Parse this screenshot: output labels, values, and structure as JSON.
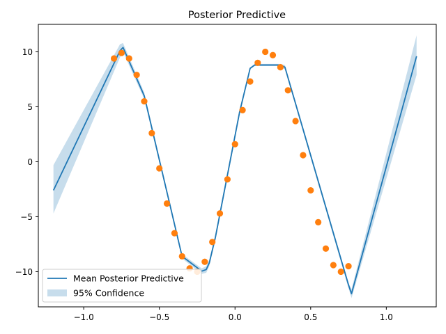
{
  "chart_data": {
    "type": "line",
    "title": "Posterior Predictive",
    "xlabel": "",
    "ylabel": "",
    "xlim": [
      -1.3,
      1.33
    ],
    "ylim": [
      -13.2,
      12.5
    ],
    "x_ticks": [
      {
        "value": -1.0,
        "label": "−1.0"
      },
      {
        "value": -0.5,
        "label": "−0.5"
      },
      {
        "value": 0.0,
        "label": "0.0"
      },
      {
        "value": 0.5,
        "label": "0.5"
      },
      {
        "value": 1.0,
        "label": "1.0"
      }
    ],
    "y_ticks": [
      {
        "value": 10,
        "label": "10"
      },
      {
        "value": 5,
        "label": "5"
      },
      {
        "value": 0,
        "label": "0"
      },
      {
        "value": -5,
        "label": "−5"
      },
      {
        "value": -10,
        "label": "−10"
      }
    ],
    "grid": false,
    "legend_position": "lower-left",
    "legend": [
      {
        "label": "Mean Posterior Predictive",
        "kind": "line",
        "color": "#1f77b4"
      },
      {
        "label": "95% Confidence",
        "kind": "band",
        "color": "#1f77b4"
      }
    ],
    "mean_x": [
      -1.2,
      -0.76,
      -0.74,
      -0.6,
      -0.35,
      -0.22,
      -0.19,
      -0.17,
      -0.13,
      0.03,
      0.1,
      0.13,
      0.3,
      0.33,
      0.75,
      0.77,
      1.2
    ],
    "mean_y": [
      -2.6,
      10.1,
      10.4,
      6.0,
      -8.6,
      -9.95,
      -9.8,
      -9.2,
      -6.9,
      4.5,
      8.5,
      8.8,
      8.8,
      8.6,
      -11.2,
      -12.0,
      9.6
    ],
    "band_upper": [
      -0.3,
      10.7,
      10.8,
      6.3,
      -8.4,
      -9.7,
      -9.5,
      -8.9,
      -6.6,
      4.8,
      8.6,
      8.9,
      8.9,
      8.8,
      -11.0,
      -11.6,
      11.5
    ],
    "band_lower": [
      -4.7,
      9.5,
      10.0,
      5.7,
      -8.8,
      -10.2,
      -10.1,
      -9.5,
      -7.2,
      4.2,
      8.4,
      8.7,
      8.7,
      8.4,
      -11.5,
      -12.4,
      7.9
    ],
    "points": [
      {
        "x": -0.8,
        "y": 9.4
      },
      {
        "x": -0.75,
        "y": 9.9
      },
      {
        "x": -0.7,
        "y": 9.4
      },
      {
        "x": -0.65,
        "y": 7.9
      },
      {
        "x": -0.6,
        "y": 5.5
      },
      {
        "x": -0.55,
        "y": 2.6
      },
      {
        "x": -0.5,
        "y": -0.6
      },
      {
        "x": -0.45,
        "y": -3.8
      },
      {
        "x": -0.4,
        "y": -6.5
      },
      {
        "x": -0.35,
        "y": -8.6
      },
      {
        "x": -0.3,
        "y": -9.7
      },
      {
        "x": -0.25,
        "y": -10.0
      },
      {
        "x": -0.2,
        "y": -9.1
      },
      {
        "x": -0.15,
        "y": -7.3
      },
      {
        "x": -0.1,
        "y": -4.7
      },
      {
        "x": -0.05,
        "y": -1.6
      },
      {
        "x": 0.0,
        "y": 1.6
      },
      {
        "x": 0.05,
        "y": 4.7
      },
      {
        "x": 0.1,
        "y": 7.3
      },
      {
        "x": 0.15,
        "y": 9.0
      },
      {
        "x": 0.2,
        "y": 10.0
      },
      {
        "x": 0.25,
        "y": 9.7
      },
      {
        "x": 0.3,
        "y": 8.6
      },
      {
        "x": 0.35,
        "y": 6.5
      },
      {
        "x": 0.4,
        "y": 3.7
      },
      {
        "x": 0.45,
        "y": 0.6
      },
      {
        "x": 0.5,
        "y": -2.6
      },
      {
        "x": 0.55,
        "y": -5.5
      },
      {
        "x": 0.6,
        "y": -7.9
      },
      {
        "x": 0.65,
        "y": -9.4
      },
      {
        "x": 0.7,
        "y": -10.0
      },
      {
        "x": 0.75,
        "y": -9.5
      }
    ],
    "line_color": "#1f77b4",
    "band_color": "#1f77b4",
    "band_opacity": 0.25,
    "point_color": "#ff7f0e"
  }
}
